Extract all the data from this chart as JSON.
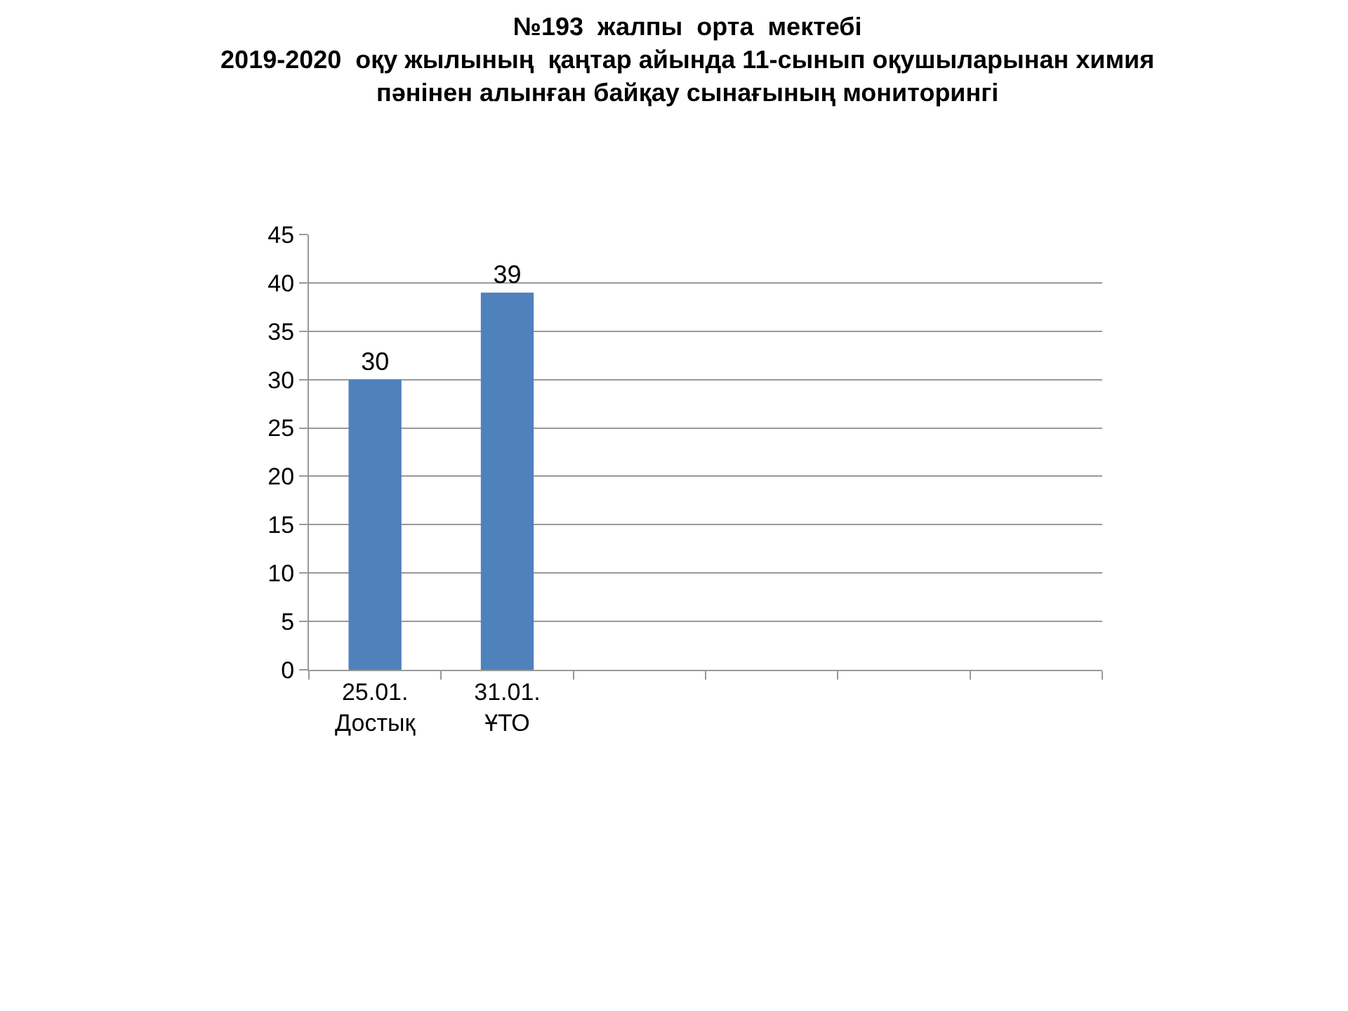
{
  "chart_data": {
    "type": "bar",
    "title": "№193  жалпы  орта  мектебі\n2019-2020  оқу жылының  қаңтар айында 11-сынып оқушыларынан химия\nпәнінен алынған байқау сынағының мониторингі",
    "categories": [
      "25.01.\nДостық",
      "31.01.\nҰТО",
      null,
      null,
      null,
      null
    ],
    "values": [
      30,
      39,
      null,
      null,
      null,
      null
    ],
    "color": "#4f81bd",
    "ylim": [
      0,
      45
    ],
    "yticks": [
      0,
      5,
      10,
      15,
      20,
      25,
      30,
      35,
      40,
      45
    ],
    "grid": "y",
    "data_labels": true,
    "legend": false
  }
}
